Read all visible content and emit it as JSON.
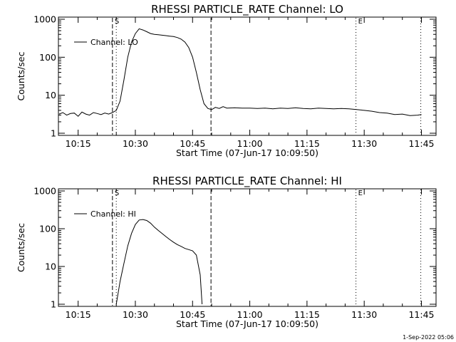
{
  "footer": {
    "timestamp": "1-Sep-2022 05:06"
  },
  "colors": {
    "line": "#000000",
    "background": "#ffffff"
  },
  "chart_data": [
    {
      "type": "line",
      "title": "RHESSI PARTICLE_RATE Channel: LO",
      "xlabel": "Start Time (07-Jun-17 10:09:50)",
      "ylabel": "Counts/sec",
      "yscale": "log",
      "ylim": [
        1,
        1000
      ],
      "xlim_minutes": [
        "10:09:50",
        "11:48:50"
      ],
      "xtick_labels": [
        "10:15",
        "10:30",
        "10:45",
        "11:00",
        "11:15",
        "11:30",
        "11:45"
      ],
      "xtick_values": [
        "10:15",
        "10:30",
        "10:45",
        "11:00",
        "11:15",
        "11:30",
        "11:45"
      ],
      "ytick_labels": [
        "1",
        "10",
        "100",
        "1000"
      ],
      "ytick_values": [
        1,
        10,
        100,
        1000
      ],
      "legend": {
        "entry": "Channel: LO",
        "position": "top-left"
      },
      "markers": [
        {
          "label": "S",
          "time": "10:24:00",
          "style": "dashed"
        },
        {
          "label": "",
          "time": "10:25:00",
          "style": "dotted"
        },
        {
          "label": "",
          "time": "10:49:50",
          "style": "dashed"
        },
        {
          "label": "E",
          "time": "11:27:50",
          "style": "dotted"
        },
        {
          "label": "",
          "time": "11:44:50",
          "style": "dotted"
        }
      ],
      "series": [
        {
          "name": "Channel: LO",
          "x": [
            "10:10:00",
            "10:11:00",
            "10:12:00",
            "10:13:00",
            "10:14:00",
            "10:15:00",
            "10:16:00",
            "10:17:00",
            "10:18:00",
            "10:19:00",
            "10:20:00",
            "10:21:00",
            "10:22:00",
            "10:23:00",
            "10:24:00",
            "10:25:00",
            "10:26:00",
            "10:27:00",
            "10:28:00",
            "10:29:00",
            "10:30:00",
            "10:31:00",
            "10:32:00",
            "10:33:00",
            "10:34:00",
            "10:35:00",
            "10:36:00",
            "10:37:00",
            "10:38:00",
            "10:39:00",
            "10:40:00",
            "10:41:00",
            "10:42:00",
            "10:43:00",
            "10:44:00",
            "10:45:00",
            "10:46:00",
            "10:47:00",
            "10:48:00",
            "10:49:00",
            "10:50:00",
            "10:51:00",
            "10:52:00",
            "10:53:00",
            "10:54:00",
            "10:56:00",
            "10:58:00",
            "11:00:00",
            "11:02:00",
            "11:04:00",
            "11:06:00",
            "11:08:00",
            "11:10:00",
            "11:12:00",
            "11:14:00",
            "11:16:00",
            "11:18:00",
            "11:20:00",
            "11:22:00",
            "11:24:00",
            "11:26:00",
            "11:28:00",
            "11:30:00",
            "11:32:00",
            "11:34:00",
            "11:36:00",
            "11:38:00",
            "11:40:00",
            "11:42:00",
            "11:44:00",
            "11:45:00"
          ],
          "y": [
            3.2,
            3.5,
            3.0,
            3.3,
            3.4,
            2.8,
            3.6,
            3.2,
            3.0,
            3.5,
            3.3,
            3.1,
            3.4,
            3.2,
            3.5,
            4.0,
            7,
            25,
            100,
            250,
            420,
            560,
            520,
            470,
            420,
            400,
            390,
            380,
            370,
            360,
            350,
            330,
            300,
            250,
            180,
            100,
            40,
            14,
            6,
            4.5,
            4.2,
            4.8,
            4.5,
            5.0,
            4.6,
            4.7,
            4.6,
            4.6,
            4.5,
            4.6,
            4.4,
            4.6,
            4.5,
            4.7,
            4.5,
            4.4,
            4.6,
            4.5,
            4.4,
            4.5,
            4.4,
            4.2,
            4.0,
            3.8,
            3.5,
            3.4,
            3.1,
            3.2,
            2.9,
            3.0,
            3.1
          ]
        }
      ]
    },
    {
      "type": "line",
      "title": "RHESSI PARTICLE_RATE Channel: HI",
      "xlabel": "Start Time (07-Jun-17 10:09:50)",
      "ylabel": "Counts/sec",
      "yscale": "log",
      "ylim": [
        1,
        1000
      ],
      "xtick_labels": [
        "10:15",
        "10:30",
        "10:45",
        "11:00",
        "11:15",
        "11:30",
        "11:45"
      ],
      "xtick_values": [
        "10:15",
        "10:30",
        "10:45",
        "11:00",
        "11:15",
        "11:30",
        "11:45"
      ],
      "ytick_labels": [
        "1",
        "10",
        "100",
        "1000"
      ],
      "ytick_values": [
        1,
        10,
        100,
        1000
      ],
      "legend": {
        "entry": "Channel: HI",
        "position": "top-left"
      },
      "markers": [
        {
          "label": "S",
          "time": "10:24:00",
          "style": "dashed"
        },
        {
          "label": "",
          "time": "10:25:00",
          "style": "dotted"
        },
        {
          "label": "",
          "time": "10:49:50",
          "style": "dashed"
        },
        {
          "label": "E",
          "time": "11:27:50",
          "style": "dotted"
        },
        {
          "label": "",
          "time": "11:44:50",
          "style": "dotted"
        }
      ],
      "series": [
        {
          "name": "Channel: HI",
          "x": [
            "10:25:00",
            "10:26:00",
            "10:27:00",
            "10:28:00",
            "10:29:00",
            "10:30:00",
            "10:31:00",
            "10:32:00",
            "10:33:00",
            "10:34:00",
            "10:35:00",
            "10:36:00",
            "10:37:00",
            "10:38:00",
            "10:39:00",
            "10:40:00",
            "10:41:00",
            "10:42:00",
            "10:43:00",
            "10:44:00",
            "10:45:00",
            "10:46:00",
            "10:47:00",
            "10:47:30"
          ],
          "y": [
            1,
            4,
            12,
            35,
            75,
            130,
            170,
            175,
            165,
            140,
            110,
            90,
            75,
            62,
            52,
            44,
            38,
            34,
            30,
            28,
            26,
            20,
            6,
            1
          ]
        }
      ]
    }
  ]
}
